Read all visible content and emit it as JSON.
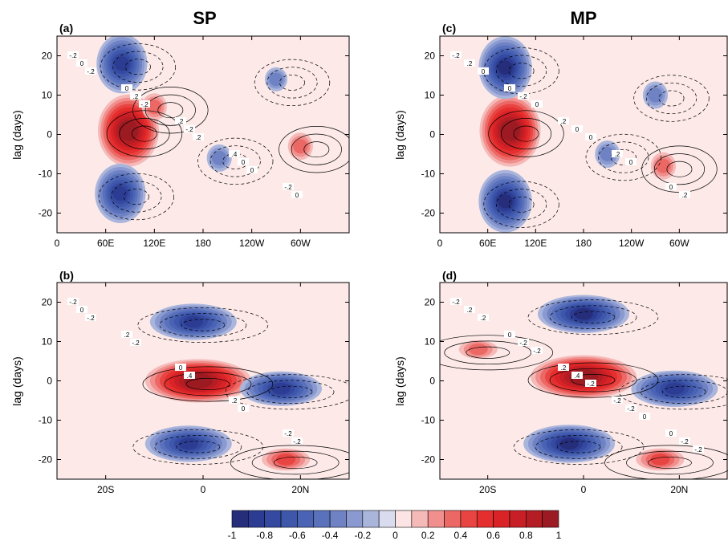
{
  "columns": [
    {
      "title": "SP"
    },
    {
      "title": "MP"
    }
  ],
  "chart_data": [
    {
      "type": "heatmap",
      "panel": "(a)",
      "ylabel": "lag (days)",
      "xlabel": "",
      "x_ticks": [
        "0",
        "60E",
        "120E",
        "180",
        "120W",
        "60W"
      ],
      "y_ticks": [
        "-20",
        "-10",
        "0",
        "10",
        "20"
      ],
      "xlim_deg_east": [
        0,
        360
      ],
      "ylim_days": [
        -25,
        25
      ],
      "contour_labels": [
        "-.2",
        "0",
        ".2",
        ".4",
        "-.2",
        "0",
        ".2",
        "-.2",
        "0",
        "0",
        "-.2",
        "-.2",
        ".2",
        "0"
      ],
      "features": [
        {
          "sign": 1,
          "lon": 88,
          "lag": 1,
          "amp": 1.0
        },
        {
          "sign": -1,
          "lon": 80,
          "lag": 18,
          "amp": 0.8
        },
        {
          "sign": -1,
          "lon": 78,
          "lag": -15,
          "amp": 0.8
        },
        {
          "sign": 1,
          "lon": 120,
          "lag": 7,
          "amp": 0.3
        },
        {
          "sign": -1,
          "lon": 200,
          "lag": -6,
          "amp": 0.3
        },
        {
          "sign": 1,
          "lon": 300,
          "lag": -3,
          "amp": 0.3
        },
        {
          "sign": -1,
          "lon": 270,
          "lag": 14,
          "amp": 0.25
        }
      ]
    },
    {
      "type": "heatmap",
      "panel": "(b)",
      "ylabel": "lag (days)",
      "xlabel": "",
      "x_ticks": [
        "20S",
        "0",
        "20N"
      ],
      "y_ticks": [
        "-20",
        "-10",
        "0",
        "10",
        "20"
      ],
      "xlim_deg_lat": [
        -30,
        30
      ],
      "ylim_days": [
        -25,
        25
      ],
      "contour_labels": [
        "-.2",
        ".2",
        "0",
        ".2",
        "-.2",
        "0",
        "-.2",
        ".4",
        "0",
        "-.2",
        "-.2"
      ],
      "features": [
        {
          "sign": 1,
          "lat": -1,
          "lag": 0,
          "amp": 1.0
        },
        {
          "sign": -1,
          "lat": -2,
          "lag": 15,
          "amp": 0.8
        },
        {
          "sign": -1,
          "lat": -3,
          "lag": -16,
          "amp": 0.8
        },
        {
          "sign": -1,
          "lat": 16,
          "lag": -2,
          "amp": 0.75
        },
        {
          "sign": 1,
          "lat": 17,
          "lag": -20,
          "amp": 0.4
        }
      ]
    },
    {
      "type": "heatmap",
      "panel": "(c)",
      "ylabel": "lag (days)",
      "xlabel": "",
      "x_ticks": [
        "0",
        "60E",
        "120E",
        "180",
        "120W",
        "60W"
      ],
      "y_ticks": [
        "-20",
        "-10",
        "0",
        "10",
        "20"
      ],
      "xlim_deg_east": [
        0,
        360
      ],
      "ylim_days": [
        -25,
        25
      ],
      "contour_labels": [
        "-.2",
        "0",
        ".2",
        ".2",
        "0",
        ".2",
        "-.2",
        "0",
        "0",
        ".2",
        "0",
        "0",
        "0"
      ],
      "features": [
        {
          "sign": 1,
          "lon": 88,
          "lag": 1,
          "amp": 1.0
        },
        {
          "sign": -1,
          "lon": 82,
          "lag": 17,
          "amp": 0.85
        },
        {
          "sign": -1,
          "lon": 82,
          "lag": -17,
          "amp": 0.85
        },
        {
          "sign": -1,
          "lon": 210,
          "lag": -5,
          "amp": 0.3
        },
        {
          "sign": 1,
          "lon": 280,
          "lag": -8,
          "amp": 0.3
        },
        {
          "sign": -1,
          "lon": 270,
          "lag": 10,
          "amp": 0.3
        }
      ]
    },
    {
      "type": "heatmap",
      "panel": "(d)",
      "ylabel": "lag (days)",
      "xlabel": "",
      "x_ticks": [
        "20S",
        "0",
        "20N"
      ],
      "y_ticks": [
        "-20",
        "-10",
        "0",
        "10",
        "20"
      ],
      "xlim_deg_lat": [
        -30,
        30
      ],
      "ylim_days": [
        -25,
        25
      ],
      "contour_labels": [
        "-.2",
        "0",
        ".2",
        "-.2",
        "0",
        ".2",
        "-.2",
        ".4",
        "-.2",
        "-.2",
        ".2",
        "-.2",
        "-.2",
        "0",
        "-.2"
      ],
      "features": [
        {
          "sign": 1,
          "lat": 0,
          "lag": 1,
          "amp": 1.0
        },
        {
          "sign": -1,
          "lat": 0,
          "lag": 17,
          "amp": 0.85
        },
        {
          "sign": -1,
          "lat": -3,
          "lag": -16,
          "amp": 0.85
        },
        {
          "sign": -1,
          "lat": 19,
          "lag": -2,
          "amp": 0.8
        },
        {
          "sign": 1,
          "lat": 16,
          "lag": -20,
          "amp": 0.4
        },
        {
          "sign": 1,
          "lat": -22,
          "lag": 8,
          "amp": 0.3
        }
      ]
    }
  ],
  "colorbar": {
    "tick_labels": [
      "-1",
      "-0.8",
      "-0.6",
      "-0.4",
      "-0.2",
      "0",
      "0.2",
      "0.4",
      "0.6",
      "0.8",
      "1"
    ],
    "levels": 20,
    "colors": [
      "#262d7a",
      "#2b3c92",
      "#34499f",
      "#3e57ab",
      "#4a63b4",
      "#5a72bc",
      "#6e82c4",
      "#8a99cf",
      "#aab5dc",
      "#d9dcee",
      "#fbe4e3",
      "#f5b9b7",
      "#f08f8d",
      "#ec6865",
      "#e84442",
      "#e52e2e",
      "#d92326",
      "#c81e25",
      "#b31d23",
      "#9c1a21"
    ]
  },
  "colors": {
    "background_negative": "#e8eaf4",
    "background_positive": "#fce9e8",
    "contour_line": "#000000"
  }
}
